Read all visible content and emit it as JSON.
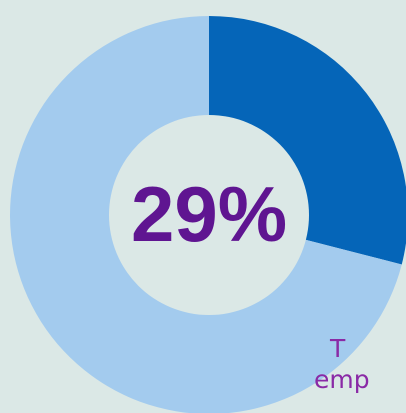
{
  "chart_data": {
    "type": "pie",
    "variant": "donut",
    "center_label": "29%",
    "slices": [
      {
        "label": "",
        "value": 29,
        "color": "#0565b8"
      },
      {
        "label": "",
        "value": 71,
        "color": "#a3cbee"
      }
    ],
    "start_angle_deg": 0,
    "direction": "clockwise"
  },
  "caption": {
    "line1": "T",
    "line2": "emp"
  },
  "colors": {
    "background": "#dbe8e6",
    "hole": "#dbe8e6",
    "center_text": "#5f1591",
    "caption_text": "#8a2aa6"
  }
}
